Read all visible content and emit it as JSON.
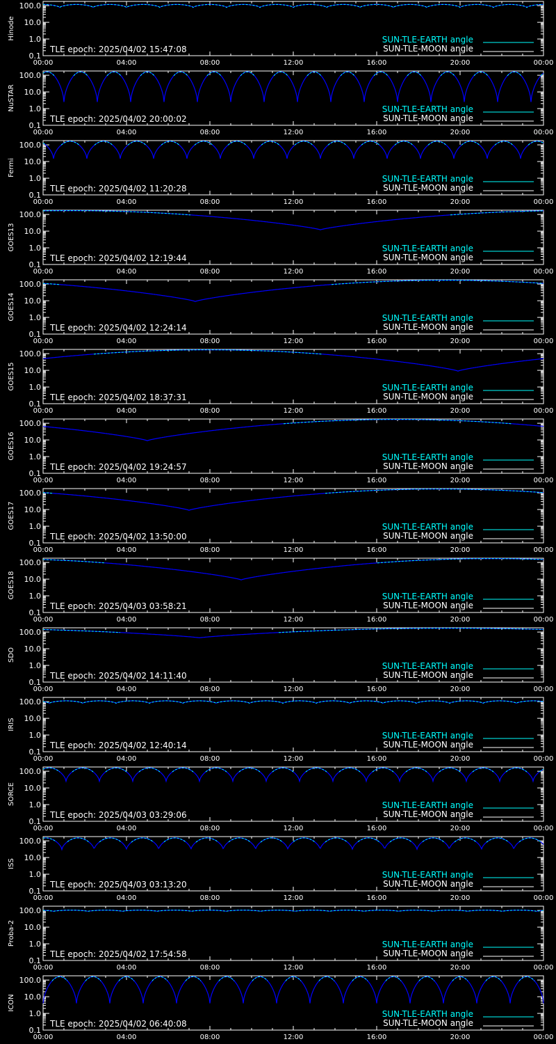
{
  "colors": {
    "background": "#000000",
    "axes": "#ffffff",
    "earth_angle": "#00ffff",
    "moon_angle": "#ffffff",
    "sun_angle_curve": "#0000ff"
  },
  "legend": {
    "earth_label": "SUN-TLE-EARTH angle",
    "moon_label": "SUN-TLE-MOON angle"
  },
  "chart_data": [
    {
      "type": "line",
      "satellite": "Hinode",
      "epoch_text": "TLE epoch: 2025/04/02 15:47:08",
      "x": [
        "00:00",
        "04:00",
        "08:00",
        "12:00",
        "16:00",
        "20:00",
        "00:00"
      ],
      "yscale": "log",
      "ylim": [
        0.1,
        180
      ],
      "yticks": [
        "100.0",
        "10.0",
        "1.0",
        "0.1"
      ],
      "curve": {
        "kind": "periodic",
        "orbits_per_day": 15,
        "max_deg": 118,
        "min_deg": 78,
        "phase_hours": 0.8
      },
      "series": [
        {
          "name": "SUN-TLE-EARTH angle"
        },
        {
          "name": "SUN-TLE-MOON angle"
        }
      ]
    },
    {
      "type": "line",
      "satellite": "NuSTAR",
      "epoch_text": "TLE epoch: 2025/04/02 20:00:02",
      "x": [
        "00:00",
        "04:00",
        "08:00",
        "12:00",
        "16:00",
        "20:00",
        "00:00"
      ],
      "yscale": "log",
      "ylim": [
        0.1,
        180
      ],
      "yticks": [
        "100.0",
        "10.0",
        "1.0",
        "0.1"
      ],
      "curve": {
        "kind": "periodic",
        "orbits_per_day": 15,
        "max_deg": 160,
        "min_deg": 2.5,
        "phase_hours": 1.0
      },
      "series": [
        {
          "name": "SUN-TLE-EARTH angle"
        },
        {
          "name": "SUN-TLE-MOON angle"
        }
      ]
    },
    {
      "type": "line",
      "satellite": "Fermi",
      "epoch_text": "TLE epoch: 2025/04/02 11:20:28",
      "x": [
        "00:00",
        "04:00",
        "08:00",
        "12:00",
        "16:00",
        "20:00",
        "00:00"
      ],
      "yscale": "log",
      "ylim": [
        0.1,
        180
      ],
      "yticks": [
        "100.0",
        "10.0",
        "1.0",
        "0.1"
      ],
      "curve": {
        "kind": "periodic",
        "orbits_per_day": 15,
        "max_deg": 165,
        "min_deg": 15,
        "phase_hours": 0.5
      },
      "series": [
        {
          "name": "SUN-TLE-EARTH angle"
        },
        {
          "name": "SUN-TLE-MOON angle"
        }
      ]
    },
    {
      "type": "line",
      "satellite": "GOES13",
      "epoch_text": "TLE epoch: 2025/04/02 12:19:44",
      "x": [
        "00:00",
        "04:00",
        "08:00",
        "12:00",
        "16:00",
        "20:00",
        "00:00"
      ],
      "yscale": "log",
      "ylim": [
        0.1,
        180
      ],
      "yticks": [
        "100.0",
        "10.0",
        "1.0",
        "0.1"
      ],
      "curve": {
        "kind": "daily",
        "max_deg": 170,
        "min_deg": 12,
        "min_hour": 13.3
      },
      "series": [
        {
          "name": "SUN-TLE-EARTH angle"
        },
        {
          "name": "SUN-TLE-MOON angle"
        }
      ]
    },
    {
      "type": "line",
      "satellite": "GOES14",
      "epoch_text": "TLE epoch: 2025/04/02 12:24:14",
      "x": [
        "00:00",
        "04:00",
        "08:00",
        "12:00",
        "16:00",
        "20:00",
        "00:00"
      ],
      "yscale": "log",
      "ylim": [
        0.1,
        180
      ],
      "yticks": [
        "100.0",
        "10.0",
        "1.0",
        "0.1"
      ],
      "curve": {
        "kind": "daily",
        "max_deg": 170,
        "min_deg": 9,
        "min_hour": 7.3
      },
      "series": [
        {
          "name": "SUN-TLE-EARTH angle"
        },
        {
          "name": "SUN-TLE-MOON angle"
        }
      ]
    },
    {
      "type": "line",
      "satellite": "GOES15",
      "epoch_text": "TLE epoch: 2025/04/02 18:37:31",
      "x": [
        "00:00",
        "04:00",
        "08:00",
        "12:00",
        "16:00",
        "20:00",
        "00:00"
      ],
      "yscale": "log",
      "ylim": [
        0.1,
        180
      ],
      "yticks": [
        "100.0",
        "10.0",
        "1.0",
        "0.1"
      ],
      "curve": {
        "kind": "daily",
        "max_deg": 170,
        "min_deg": 9,
        "min_hour": 19.9
      },
      "series": [
        {
          "name": "SUN-TLE-EARTH angle"
        },
        {
          "name": "SUN-TLE-MOON angle"
        }
      ]
    },
    {
      "type": "line",
      "satellite": "GOES16",
      "epoch_text": "TLE epoch: 2025/04/02 19:24:57",
      "x": [
        "00:00",
        "04:00",
        "08:00",
        "12:00",
        "16:00",
        "20:00",
        "00:00"
      ],
      "yscale": "log",
      "ylim": [
        0.1,
        180
      ],
      "yticks": [
        "100.0",
        "10.0",
        "1.0",
        "0.1"
      ],
      "curve": {
        "kind": "daily",
        "max_deg": 170,
        "min_deg": 9,
        "min_hour": 5.0
      },
      "series": [
        {
          "name": "SUN-TLE-EARTH angle"
        },
        {
          "name": "SUN-TLE-MOON angle"
        }
      ]
    },
    {
      "type": "line",
      "satellite": "GOES17",
      "epoch_text": "TLE epoch: 2025/04/02 13:50:00",
      "x": [
        "00:00",
        "04:00",
        "08:00",
        "12:00",
        "16:00",
        "20:00",
        "00:00"
      ],
      "yscale": "log",
      "ylim": [
        0.1,
        180
      ],
      "yticks": [
        "100.0",
        "10.0",
        "1.0",
        "0.1"
      ],
      "curve": {
        "kind": "daily",
        "max_deg": 170,
        "min_deg": 9,
        "min_hour": 7.0
      },
      "series": [
        {
          "name": "SUN-TLE-EARTH angle"
        },
        {
          "name": "SUN-TLE-MOON angle"
        }
      ]
    },
    {
      "type": "line",
      "satellite": "GOES18",
      "epoch_text": "TLE epoch: 2025/04/03 03:58:21",
      "x": [
        "00:00",
        "04:00",
        "08:00",
        "12:00",
        "16:00",
        "20:00",
        "00:00"
      ],
      "yscale": "log",
      "ylim": [
        0.1,
        180
      ],
      "yticks": [
        "100.0",
        "10.0",
        "1.0",
        "0.1"
      ],
      "curve": {
        "kind": "daily",
        "max_deg": 170,
        "min_deg": 9,
        "min_hour": 9.5
      },
      "series": [
        {
          "name": "SUN-TLE-EARTH angle"
        },
        {
          "name": "SUN-TLE-MOON angle"
        }
      ]
    },
    {
      "type": "line",
      "satellite": "SDO",
      "epoch_text": "TLE epoch: 2025/04/02 14:11:40",
      "x": [
        "00:00",
        "04:00",
        "08:00",
        "12:00",
        "16:00",
        "20:00",
        "00:00"
      ],
      "yscale": "log",
      "ylim": [
        0.1,
        180
      ],
      "yticks": [
        "100.0",
        "10.0",
        "1.0",
        "0.1"
      ],
      "curve": {
        "kind": "daily",
        "max_deg": 170,
        "min_deg": 45,
        "min_hour": 7.5
      },
      "series": [
        {
          "name": "SUN-TLE-EARTH angle"
        },
        {
          "name": "SUN-TLE-MOON angle"
        }
      ]
    },
    {
      "type": "line",
      "satellite": "IRIS",
      "epoch_text": "TLE epoch: 2025/04/02 12:40:14",
      "x": [
        "00:00",
        "04:00",
        "08:00",
        "12:00",
        "16:00",
        "20:00",
        "00:00"
      ],
      "yscale": "log",
      "ylim": [
        0.1,
        180
      ],
      "yticks": [
        "100.0",
        "10.0",
        "1.0",
        "0.1"
      ],
      "curve": {
        "kind": "periodic",
        "orbits_per_day": 15,
        "max_deg": 112,
        "min_deg": 80,
        "phase_hours": 0.3
      },
      "series": [
        {
          "name": "SUN-TLE-EARTH angle"
        },
        {
          "name": "SUN-TLE-MOON angle"
        }
      ]
    },
    {
      "type": "line",
      "satellite": "SORCE",
      "epoch_text": "TLE epoch: 2025/04/03 03:29:06",
      "x": [
        "00:00",
        "04:00",
        "08:00",
        "12:00",
        "16:00",
        "20:00",
        "00:00"
      ],
      "yscale": "log",
      "ylim": [
        0.1,
        180
      ],
      "yticks": [
        "100.0",
        "10.0",
        "1.0",
        "0.1"
      ],
      "curve": {
        "kind": "periodic",
        "orbits_per_day": 15,
        "max_deg": 160,
        "min_deg": 25,
        "phase_hours": 1.1
      },
      "series": [
        {
          "name": "SUN-TLE-EARTH angle"
        },
        {
          "name": "SUN-TLE-MOON angle"
        }
      ]
    },
    {
      "type": "line",
      "satellite": "ISS",
      "epoch_text": "TLE epoch: 2025/04/03 03:13:20",
      "x": [
        "00:00",
        "04:00",
        "08:00",
        "12:00",
        "16:00",
        "20:00",
        "00:00"
      ],
      "yscale": "log",
      "ylim": [
        0.1,
        180
      ],
      "yticks": [
        "100.0",
        "10.0",
        "1.0",
        "0.1"
      ],
      "curve": {
        "kind": "periodic",
        "orbits_per_day": 15.5,
        "max_deg": 150,
        "min_deg": 30,
        "phase_hours": 0.9
      },
      "series": [
        {
          "name": "SUN-TLE-EARTH angle"
        },
        {
          "name": "SUN-TLE-MOON angle"
        }
      ]
    },
    {
      "type": "line",
      "satellite": "Proba-2",
      "epoch_text": "TLE epoch: 2025/04/02 17:54:58",
      "x": [
        "00:00",
        "04:00",
        "08:00",
        "12:00",
        "16:00",
        "20:00",
        "00:00"
      ],
      "yscale": "log",
      "ylim": [
        0.1,
        180
      ],
      "yticks": [
        "100.0",
        "10.0",
        "1.0",
        "0.1"
      ],
      "curve": {
        "kind": "periodic",
        "orbits_per_day": 14.5,
        "max_deg": 104,
        "min_deg": 88,
        "phase_hours": 0.5
      },
      "series": [
        {
          "name": "SUN-TLE-EARTH angle"
        },
        {
          "name": "SUN-TLE-MOON angle"
        }
      ]
    },
    {
      "type": "line",
      "satellite": "ICON",
      "epoch_text": "TLE epoch: 2025/04/02 06:40:08",
      "x": [
        "00:00",
        "04:00",
        "08:00",
        "12:00",
        "16:00",
        "20:00",
        "00:00"
      ],
      "yscale": "log",
      "ylim": [
        0.1,
        180
      ],
      "yticks": [
        "100.0",
        "10.0",
        "1.0",
        "0.1"
      ],
      "curve": {
        "kind": "periodic",
        "orbits_per_day": 15,
        "max_deg": 160,
        "min_deg": 4,
        "phase_hours": 1.6
      },
      "series": [
        {
          "name": "SUN-TLE-EARTH angle"
        },
        {
          "name": "SUN-TLE-MOON angle"
        }
      ]
    }
  ]
}
